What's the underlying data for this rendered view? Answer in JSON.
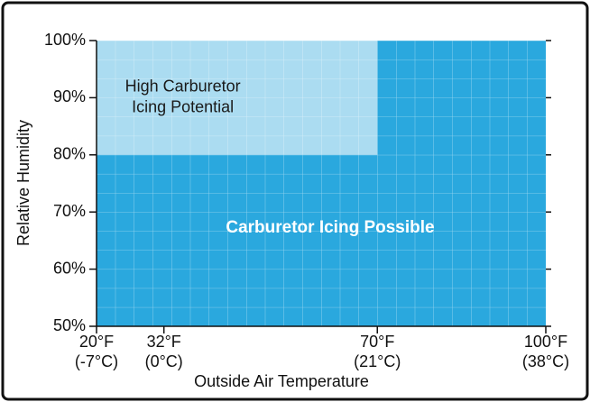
{
  "chart_data": {
    "type": "region",
    "x_label": "Outside Air Temperature",
    "y_label": "Relative Humidity",
    "xlim": [
      20,
      100
    ],
    "ylim": [
      50,
      100
    ],
    "xticks": [
      {
        "value": 20,
        "label": "20°F",
        "sublabel": "(-7°C)"
      },
      {
        "value": 32,
        "label": "32°F",
        "sublabel": "(0°C)"
      },
      {
        "value": 70,
        "label": "70°F",
        "sublabel": "(21°C)"
      },
      {
        "value": 100,
        "label": "100°F",
        "sublabel": "(38°C)"
      }
    ],
    "yticks": [
      {
        "value": 50,
        "label": "50%"
      },
      {
        "value": 60,
        "label": "60%"
      },
      {
        "value": 70,
        "label": "70%"
      },
      {
        "value": 80,
        "label": "80%"
      },
      {
        "value": 90,
        "label": "90%"
      },
      {
        "value": 100,
        "label": "100%"
      }
    ],
    "grid": true,
    "regions": [
      {
        "label": [
          "Carburetor Icing Possible"
        ],
        "x": [
          20,
          100
        ],
        "y": [
          50,
          100
        ],
        "color": "#2aa8de",
        "text_color": "#ffffff"
      },
      {
        "label": [
          "High Carburetor",
          "Icing Potential"
        ],
        "x": [
          20,
          70
        ],
        "y": [
          80,
          100
        ],
        "color": "#abdcf1",
        "text_color": "#1a1a1a"
      }
    ]
  }
}
